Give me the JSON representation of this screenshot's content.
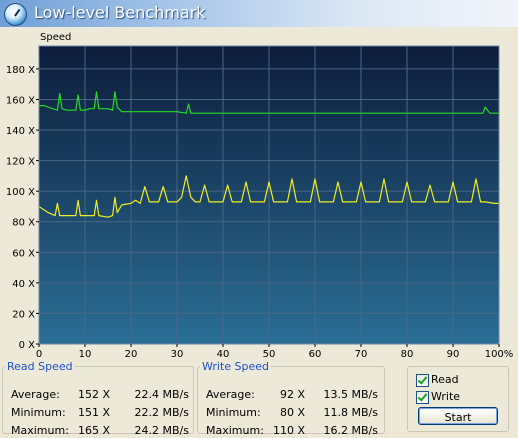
{
  "window": {
    "title": "Low-level Benchmark"
  },
  "chart_data": {
    "type": "line",
    "ylabel": "Speed",
    "x_unit": "%",
    "y_unit": "X",
    "xlim": [
      0,
      100
    ],
    "ylim": [
      0,
      195
    ],
    "x_ticks": [
      0,
      10,
      20,
      30,
      40,
      50,
      60,
      70,
      80,
      90,
      100
    ],
    "x_tick_labels": [
      "0",
      "10",
      "20",
      "30",
      "40",
      "50",
      "60",
      "70",
      "80",
      "90",
      "100%"
    ],
    "y_ticks": [
      0,
      20,
      40,
      60,
      80,
      100,
      120,
      140,
      160,
      180
    ],
    "y_tick_labels": [
      "0 X",
      "20 X",
      "40 X",
      "60 X",
      "80 X",
      "100 X",
      "120 X",
      "140 X",
      "160 X",
      "180 X"
    ],
    "grid": true,
    "colors": {
      "plot_top": "#0d1c3a",
      "plot_bottom": "#2a6e95",
      "grid": "#4a6684",
      "read": "#22dd22",
      "write": "#eeee22"
    },
    "series": [
      {
        "name": "Read",
        "x": [
          0,
          1,
          2,
          3,
          4,
          4.5,
          5,
          6,
          7,
          8,
          8.5,
          9,
          10,
          11,
          12,
          12.5,
          13,
          14,
          15,
          16,
          16.5,
          17,
          18,
          20,
          25,
          30,
          32,
          32.5,
          33,
          35,
          40,
          45,
          50,
          55,
          60,
          65,
          70,
          75,
          80,
          85,
          90,
          95,
          96.5,
          97,
          98,
          100
        ],
        "y": [
          156,
          156,
          155,
          154,
          153,
          164,
          154,
          153,
          153,
          153,
          163,
          153,
          153,
          154,
          154,
          165,
          154,
          154,
          154,
          153,
          165,
          155,
          152,
          152,
          152,
          152,
          151,
          157,
          151,
          151,
          151,
          151,
          151,
          151,
          151,
          151,
          151,
          151,
          151,
          151,
          151,
          151,
          151,
          155,
          151,
          151
        ]
      },
      {
        "name": "Write",
        "x": [
          0,
          2,
          3.5,
          4,
          4.5,
          5,
          7,
          8,
          8.5,
          9,
          11,
          12,
          12.5,
          13,
          15,
          16,
          16.5,
          17,
          18,
          20,
          21,
          22,
          23,
          24,
          26,
          27,
          28,
          30,
          31,
          32,
          33,
          34,
          35,
          36,
          37,
          38,
          40,
          41,
          42,
          43,
          44,
          45,
          46,
          47,
          49,
          50,
          51,
          52,
          54,
          55,
          56,
          57,
          59,
          60,
          61,
          62,
          64,
          65,
          66,
          67,
          69,
          70,
          71,
          72,
          74,
          75,
          76,
          77,
          79,
          80,
          81,
          82,
          84,
          85,
          86,
          87,
          89,
          90,
          91,
          92,
          94,
          95,
          96,
          97,
          99,
          100
        ],
        "y": [
          90,
          86,
          84,
          92,
          84,
          84,
          84,
          84,
          94,
          84,
          84,
          84,
          94,
          84,
          83,
          84,
          96,
          86,
          91,
          92,
          94,
          92,
          103,
          93,
          93,
          103,
          93,
          93,
          96,
          110,
          96,
          93,
          93,
          104,
          93,
          93,
          93,
          104,
          93,
          93,
          93,
          106,
          93,
          93,
          93,
          106,
          93,
          93,
          93,
          108,
          93,
          93,
          93,
          108,
          93,
          93,
          93,
          106,
          93,
          93,
          93,
          106,
          93,
          93,
          93,
          108,
          93,
          93,
          93,
          106,
          93,
          93,
          93,
          104,
          93,
          93,
          93,
          106,
          93,
          93,
          93,
          108,
          93,
          93,
          92,
          92
        ]
      }
    ]
  },
  "read_speed": {
    "title": "Read Speed",
    "rows": [
      {
        "label": "Average:",
        "value": "152 X",
        "rate": "22.4 MB/s"
      },
      {
        "label": "Minimum:",
        "value": "151 X",
        "rate": "22.2 MB/s"
      },
      {
        "label": "Maximum:",
        "value": "165 X",
        "rate": "24.2 MB/s"
      }
    ]
  },
  "write_speed": {
    "title": "Write Speed",
    "rows": [
      {
        "label": "Average:",
        "value": "92 X",
        "rate": "13.5 MB/s"
      },
      {
        "label": "Minimum:",
        "value": "80 X",
        "rate": "11.8 MB/s"
      },
      {
        "label": "Maximum:",
        "value": "110 X",
        "rate": "16.2 MB/s"
      }
    ]
  },
  "options": {
    "read_label": "Read",
    "read_checked": true,
    "write_label": "Write",
    "write_checked": true,
    "start_label": "Start"
  }
}
